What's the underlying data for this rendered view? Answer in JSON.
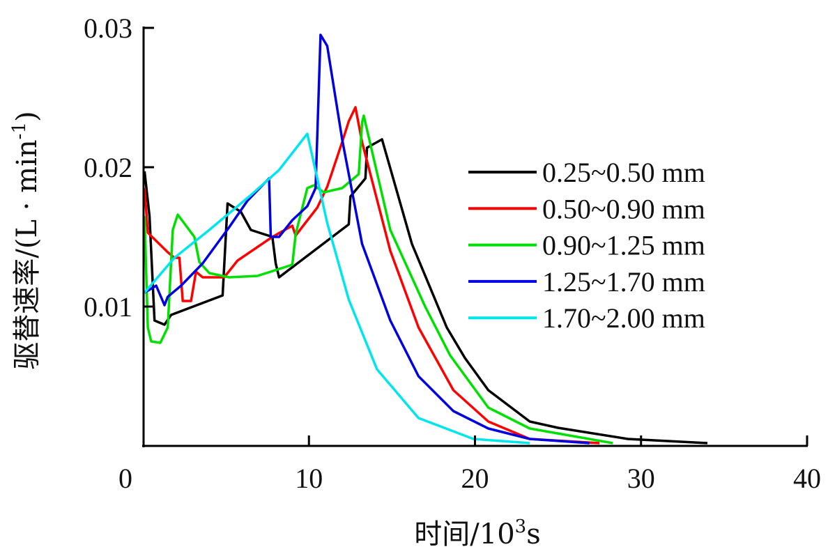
{
  "chart_data": {
    "type": "line",
    "title": "",
    "xlabel": "时间/10³s",
    "xlabel_parts": {
      "base": "时间/10",
      "sup": "3",
      "unit": "s"
    },
    "ylabel": "驱替速率/(L · min⁻¹)",
    "ylabel_parts": {
      "base": "驱替速率/(L · min",
      "sup": "-1",
      "end": ")"
    },
    "xlim": [
      0,
      40
    ],
    "ylim": [
      0,
      0.03
    ],
    "xticks": [
      "0",
      "10",
      "20",
      "30",
      "40"
    ],
    "xtick_values": [
      0,
      10,
      20,
      30,
      40
    ],
    "yticks": [
      "0.01",
      "0.02",
      "0.03"
    ],
    "ytick_values": [
      0.01,
      0.02,
      0.03
    ],
    "grid": false,
    "legend_position": "right",
    "series": [
      {
        "name": "0.25~0.50 mm",
        "color": "#000000",
        "x": [
          0.1,
          0.4,
          0.7,
          1.3,
          1.7,
          4.8,
          5.1,
          5.9,
          6.5,
          7.8,
          8.0,
          8.2,
          12.4,
          12.5,
          13.4,
          13.5,
          14.4,
          16.2,
          18.3,
          19.4,
          20.8,
          23.3,
          25,
          29.2,
          34
        ],
        "y": [
          0.0197,
          0.0165,
          0.009,
          0.0087,
          0.0094,
          0.0108,
          0.0174,
          0.0168,
          0.0155,
          0.015,
          0.0131,
          0.0121,
          0.0159,
          0.0179,
          0.0192,
          0.0214,
          0.022,
          0.0145,
          0.0085,
          0.0063,
          0.004,
          0.00175,
          0.0013,
          0.0005,
          0.0002
        ]
      },
      {
        "name": "0.50~0.90 mm",
        "color": "#ff0000",
        "x": [
          0.1,
          0.3,
          1.5,
          1.9,
          2.2,
          2.4,
          2.9,
          3.2,
          3.6,
          4.9,
          5.7,
          7.8,
          9,
          9.2,
          10.5,
          11.1,
          12,
          12.4,
          12.8,
          13.2,
          14.9,
          16.6,
          18.7,
          20.8,
          23.3,
          27.5
        ],
        "y": [
          0.0185,
          0.0153,
          0.0139,
          0.0135,
          0.0135,
          0.0104,
          0.0104,
          0.0125,
          0.0121,
          0.0121,
          0.0133,
          0.015,
          0.0158,
          0.0151,
          0.0171,
          0.0186,
          0.0218,
          0.0233,
          0.0243,
          0.0218,
          0.014,
          0.0085,
          0.004,
          0.00175,
          0.0005,
          0.0002
        ]
      },
      {
        "name": "0.90~1.25 mm",
        "color": "#00e000",
        "x": [
          0.1,
          0.3,
          0.5,
          1.05,
          1.5,
          1.8,
          2.1,
          3.1,
          3.4,
          4,
          5.2,
          6.9,
          9,
          9.2,
          9.9,
          10.3,
          10.9,
          12,
          13,
          13.2,
          13.3,
          14.9,
          17,
          18.5,
          20.8,
          23.3,
          28.3
        ],
        "y": [
          0.0165,
          0.0085,
          0.0075,
          0.0074,
          0.0085,
          0.0155,
          0.0166,
          0.015,
          0.0132,
          0.0124,
          0.0121,
          0.0122,
          0.013,
          0.0152,
          0.0185,
          0.0187,
          0.0182,
          0.0185,
          0.0195,
          0.0232,
          0.0237,
          0.0155,
          0.01,
          0.0065,
          0.00275,
          0.00125,
          0.0002
        ]
      },
      {
        "name": "1.25~1.70 mm",
        "color": "#0000e0",
        "x": [
          0.1,
          0.8,
          1.3,
          1.5,
          2.3,
          3.6,
          5.2,
          6.3,
          7.6,
          7.7,
          8.2,
          9,
          9.9,
          10.4,
          10.7,
          11.1,
          12,
          13.2,
          14.9,
          16.6,
          18.7,
          20.8,
          23.3,
          26.9
        ],
        "y": [
          0.011,
          0.0115,
          0.0101,
          0.0107,
          0.0115,
          0.0131,
          0.0157,
          0.0176,
          0.0192,
          0.015,
          0.015,
          0.0162,
          0.0172,
          0.0185,
          0.0295,
          0.0287,
          0.022,
          0.0145,
          0.009,
          0.005,
          0.0025,
          0.00125,
          0.0005,
          0.0002
        ]
      },
      {
        "name": "1.70~2.00 mm",
        "color": "#00e5ee",
        "x": [
          0.1,
          1.9,
          4,
          6.5,
          8.2,
          9.9,
          11.1,
          12.4,
          14.1,
          16.6,
          19.9,
          23.3
        ],
        "y": [
          0.011,
          0.0135,
          0.0155,
          0.018,
          0.0198,
          0.0224,
          0.016,
          0.0105,
          0.0055,
          0.002,
          0.0005,
          0.0002
        ]
      }
    ]
  }
}
